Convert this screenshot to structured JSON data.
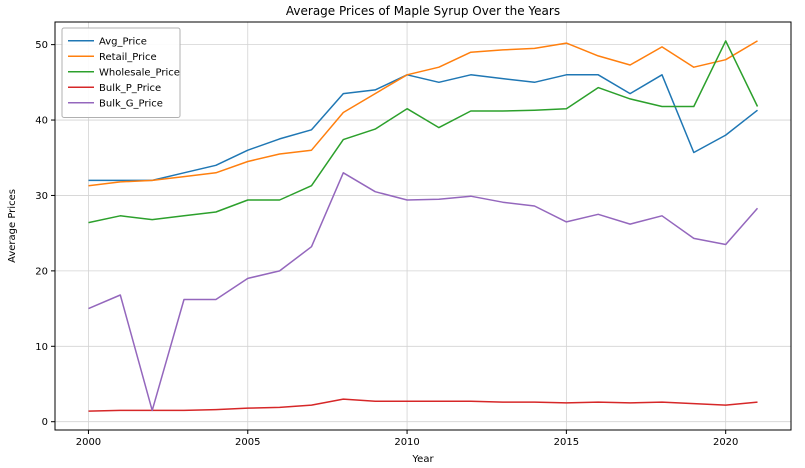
{
  "figure": {
    "background": "#ffffff"
  },
  "chart_data": {
    "type": "line",
    "title": "Average Prices of Maple Syrup Over the Years",
    "xlabel": "Year",
    "ylabel": "Average Prices",
    "x": [
      2000,
      2001,
      2002,
      2003,
      2004,
      2005,
      2006,
      2007,
      2008,
      2009,
      2010,
      2011,
      2012,
      2013,
      2014,
      2015,
      2016,
      2017,
      2018,
      2019,
      2020,
      2021
    ],
    "series": [
      {
        "name": "Avg_Price",
        "color": "#1f77b4",
        "values": [
          32.0,
          32.0,
          32.0,
          33.0,
          34.0,
          36.0,
          37.5,
          38.7,
          43.5,
          44.0,
          46.0,
          45.0,
          46.0,
          45.5,
          45.0,
          46.0,
          46.0,
          43.5,
          46.0,
          35.7,
          38.0,
          41.3
        ]
      },
      {
        "name": "Retail_Price",
        "color": "#ff7f0e",
        "values": [
          31.3,
          31.8,
          32.0,
          32.5,
          33.0,
          34.5,
          35.5,
          36.0,
          41.0,
          43.5,
          46.0,
          47.0,
          49.0,
          49.3,
          49.5,
          50.2,
          48.5,
          47.3,
          49.7,
          47.0,
          48.0,
          50.5
        ]
      },
      {
        "name": "Wholesale_Price",
        "color": "#2ca02c",
        "values": [
          26.4,
          27.3,
          26.8,
          27.3,
          27.8,
          29.4,
          29.4,
          31.3,
          37.4,
          38.8,
          41.5,
          39.0,
          41.2,
          41.2,
          41.3,
          41.5,
          44.3,
          42.8,
          41.8,
          41.8,
          50.5,
          41.8
        ]
      },
      {
        "name": "Bulk_P_Price",
        "color": "#d62728",
        "values": [
          1.4,
          1.5,
          1.5,
          1.5,
          1.6,
          1.8,
          1.9,
          2.2,
          3.0,
          2.7,
          2.7,
          2.7,
          2.7,
          2.6,
          2.6,
          2.5,
          2.6,
          2.5,
          2.6,
          2.4,
          2.2,
          2.6
        ]
      },
      {
        "name": "Bulk_G_Price",
        "color": "#9467bd",
        "values": [
          15.0,
          16.8,
          1.5,
          16.2,
          16.2,
          19.0,
          20.0,
          23.2,
          33.0,
          30.5,
          29.4,
          29.5,
          29.9,
          29.1,
          28.6,
          26.5,
          27.5,
          26.2,
          27.3,
          24.3,
          23.5,
          28.3
        ]
      }
    ],
    "xlim": [
      1998.95,
      2022.05
    ],
    "ylim": [
      -1.1,
      53.0
    ],
    "xticks": [
      2000,
      2005,
      2010,
      2015,
      2020
    ],
    "yticks": [
      0,
      10,
      20,
      30,
      40,
      50
    ],
    "grid": true,
    "legend_position": "upper-left"
  }
}
